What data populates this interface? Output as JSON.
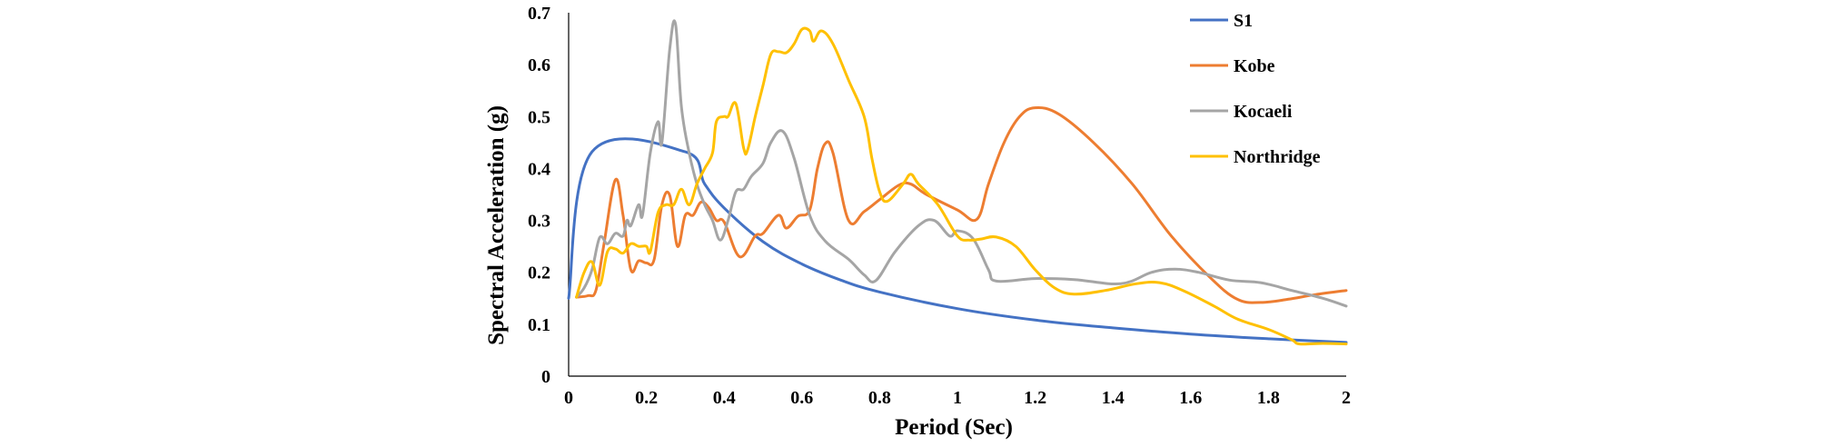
{
  "chart_data": {
    "type": "line",
    "title": "",
    "xlabel": "Period (Sec)",
    "ylabel": "Spectral Acceleration (g)",
    "xlim": [
      0,
      2
    ],
    "ylim": [
      0,
      0.7
    ],
    "xticks": [
      0,
      0.2,
      0.4,
      0.6,
      0.8,
      1,
      1.2,
      1.4,
      1.6,
      1.8,
      2
    ],
    "xtick_labels": [
      "0",
      "0.2",
      "0.4",
      "0.6",
      "0.8",
      "1",
      "1.2",
      "1.4",
      "1.6",
      "1.8",
      "2"
    ],
    "yticks": [
      0,
      0.1,
      0.2,
      0.3,
      0.4,
      0.5,
      0.6,
      0.7
    ],
    "ytick_labels": [
      "0",
      "0.1",
      "0.2",
      "0.3",
      "0.4",
      "0.5",
      "0.6",
      "0.7"
    ],
    "grid": false,
    "legend": "top-right",
    "series": [
      {
        "name": "S1",
        "color": "#4472c4",
        "points": [
          [
            0,
            0.15
          ],
          [
            0.06,
            0.432
          ],
          [
            0.3,
            0.432
          ],
          [
            0.35,
            0.37
          ],
          [
            0.4,
            0.324
          ],
          [
            0.5,
            0.259
          ],
          [
            0.6,
            0.216
          ],
          [
            0.7,
            0.185
          ],
          [
            0.8,
            0.162
          ],
          [
            1.0,
            0.13
          ],
          [
            1.2,
            0.108
          ],
          [
            1.4,
            0.093
          ],
          [
            1.6,
            0.081
          ],
          [
            1.8,
            0.072
          ],
          [
            2.0,
            0.065
          ]
        ]
      },
      {
        "name": "Kobe",
        "color": "#ed7d31",
        "points": [
          [
            0.02,
            0.152
          ],
          [
            0.05,
            0.155
          ],
          [
            0.07,
            0.165
          ],
          [
            0.09,
            0.25
          ],
          [
            0.12,
            0.378
          ],
          [
            0.14,
            0.31
          ],
          [
            0.16,
            0.205
          ],
          [
            0.18,
            0.222
          ],
          [
            0.2,
            0.218
          ],
          [
            0.22,
            0.225
          ],
          [
            0.24,
            0.33
          ],
          [
            0.26,
            0.348
          ],
          [
            0.28,
            0.25
          ],
          [
            0.3,
            0.31
          ],
          [
            0.32,
            0.31
          ],
          [
            0.34,
            0.335
          ],
          [
            0.36,
            0.325
          ],
          [
            0.38,
            0.3
          ],
          [
            0.4,
            0.297
          ],
          [
            0.44,
            0.23
          ],
          [
            0.48,
            0.27
          ],
          [
            0.5,
            0.275
          ],
          [
            0.54,
            0.31
          ],
          [
            0.56,
            0.285
          ],
          [
            0.59,
            0.308
          ],
          [
            0.62,
            0.32
          ],
          [
            0.64,
            0.4
          ],
          [
            0.66,
            0.448
          ],
          [
            0.68,
            0.43
          ],
          [
            0.72,
            0.3
          ],
          [
            0.76,
            0.317
          ],
          [
            0.8,
            0.34
          ],
          [
            0.85,
            0.368
          ],
          [
            0.88,
            0.37
          ],
          [
            0.92,
            0.35
          ],
          [
            1.0,
            0.32
          ],
          [
            1.05,
            0.302
          ],
          [
            1.08,
            0.37
          ],
          [
            1.12,
            0.45
          ],
          [
            1.16,
            0.5
          ],
          [
            1.2,
            0.517
          ],
          [
            1.26,
            0.505
          ],
          [
            1.35,
            0.45
          ],
          [
            1.45,
            0.37
          ],
          [
            1.55,
            0.27
          ],
          [
            1.65,
            0.19
          ],
          [
            1.72,
            0.148
          ],
          [
            1.78,
            0.142
          ],
          [
            1.85,
            0.148
          ],
          [
            1.92,
            0.157
          ],
          [
            2.0,
            0.165
          ]
        ]
      },
      {
        "name": "Kocaeli",
        "color": "#a5a5a5",
        "points": [
          [
            0.02,
            0.152
          ],
          [
            0.04,
            0.17
          ],
          [
            0.06,
            0.205
          ],
          [
            0.08,
            0.267
          ],
          [
            0.1,
            0.255
          ],
          [
            0.12,
            0.275
          ],
          [
            0.14,
            0.27
          ],
          [
            0.15,
            0.3
          ],
          [
            0.16,
            0.29
          ],
          [
            0.18,
            0.33
          ],
          [
            0.19,
            0.31
          ],
          [
            0.21,
            0.43
          ],
          [
            0.23,
            0.49
          ],
          [
            0.24,
            0.45
          ],
          [
            0.26,
            0.63
          ],
          [
            0.275,
            0.678
          ],
          [
            0.29,
            0.52
          ],
          [
            0.31,
            0.43
          ],
          [
            0.33,
            0.37
          ],
          [
            0.35,
            0.33
          ],
          [
            0.37,
            0.3
          ],
          [
            0.39,
            0.262
          ],
          [
            0.41,
            0.3
          ],
          [
            0.43,
            0.355
          ],
          [
            0.45,
            0.36
          ],
          [
            0.47,
            0.385
          ],
          [
            0.5,
            0.41
          ],
          [
            0.52,
            0.45
          ],
          [
            0.55,
            0.472
          ],
          [
            0.58,
            0.42
          ],
          [
            0.62,
            0.31
          ],
          [
            0.66,
            0.26
          ],
          [
            0.72,
            0.225
          ],
          [
            0.76,
            0.195
          ],
          [
            0.79,
            0.184
          ],
          [
            0.84,
            0.24
          ],
          [
            0.9,
            0.29
          ],
          [
            0.94,
            0.3
          ],
          [
            0.98,
            0.27
          ],
          [
            1.0,
            0.28
          ],
          [
            1.04,
            0.265
          ],
          [
            1.08,
            0.205
          ],
          [
            1.1,
            0.183
          ],
          [
            1.2,
            0.188
          ],
          [
            1.3,
            0.186
          ],
          [
            1.42,
            0.178
          ],
          [
            1.5,
            0.2
          ],
          [
            1.56,
            0.206
          ],
          [
            1.62,
            0.2
          ],
          [
            1.7,
            0.185
          ],
          [
            1.78,
            0.18
          ],
          [
            1.86,
            0.165
          ],
          [
            1.94,
            0.15
          ],
          [
            2.0,
            0.135
          ]
        ]
      },
      {
        "name": "Northridge",
        "color": "#ffc000",
        "points": [
          [
            0.02,
            0.152
          ],
          [
            0.04,
            0.2
          ],
          [
            0.06,
            0.22
          ],
          [
            0.08,
            0.175
          ],
          [
            0.1,
            0.24
          ],
          [
            0.12,
            0.245
          ],
          [
            0.14,
            0.237
          ],
          [
            0.16,
            0.255
          ],
          [
            0.18,
            0.25
          ],
          [
            0.2,
            0.25
          ],
          [
            0.21,
            0.24
          ],
          [
            0.23,
            0.315
          ],
          [
            0.25,
            0.33
          ],
          [
            0.27,
            0.33
          ],
          [
            0.29,
            0.36
          ],
          [
            0.31,
            0.33
          ],
          [
            0.33,
            0.37
          ],
          [
            0.35,
            0.4
          ],
          [
            0.37,
            0.43
          ],
          [
            0.38,
            0.49
          ],
          [
            0.4,
            0.5
          ],
          [
            0.41,
            0.5
          ],
          [
            0.43,
            0.525
          ],
          [
            0.45,
            0.44
          ],
          [
            0.46,
            0.435
          ],
          [
            0.48,
            0.5
          ],
          [
            0.5,
            0.56
          ],
          [
            0.52,
            0.62
          ],
          [
            0.54,
            0.625
          ],
          [
            0.56,
            0.623
          ],
          [
            0.58,
            0.64
          ],
          [
            0.6,
            0.668
          ],
          [
            0.62,
            0.665
          ],
          [
            0.63,
            0.645
          ],
          [
            0.65,
            0.665
          ],
          [
            0.68,
            0.64
          ],
          [
            0.72,
            0.57
          ],
          [
            0.76,
            0.5
          ],
          [
            0.78,
            0.42
          ],
          [
            0.8,
            0.355
          ],
          [
            0.82,
            0.337
          ],
          [
            0.86,
            0.37
          ],
          [
            0.88,
            0.389
          ],
          [
            0.9,
            0.37
          ],
          [
            0.95,
            0.33
          ],
          [
            1.0,
            0.27
          ],
          [
            1.03,
            0.262
          ],
          [
            1.06,
            0.264
          ],
          [
            1.1,
            0.268
          ],
          [
            1.15,
            0.25
          ],
          [
            1.2,
            0.205
          ],
          [
            1.25,
            0.17
          ],
          [
            1.3,
            0.158
          ],
          [
            1.38,
            0.165
          ],
          [
            1.46,
            0.178
          ],
          [
            1.52,
            0.18
          ],
          [
            1.58,
            0.165
          ],
          [
            1.66,
            0.135
          ],
          [
            1.72,
            0.11
          ],
          [
            1.8,
            0.09
          ],
          [
            1.86,
            0.07
          ],
          [
            1.88,
            0.062
          ],
          [
            1.94,
            0.063
          ],
          [
            2.0,
            0.062
          ]
        ]
      }
    ]
  }
}
